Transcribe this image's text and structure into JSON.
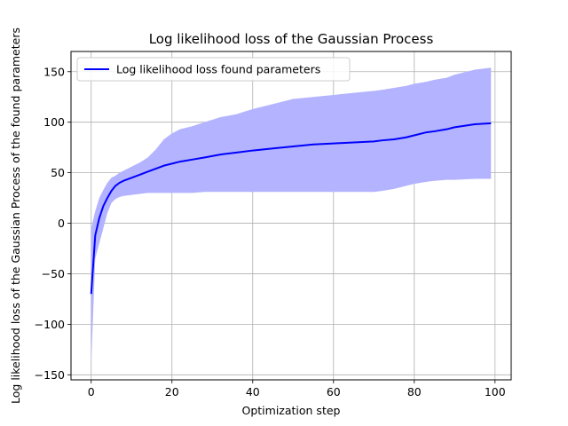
{
  "chart_data": {
    "type": "line",
    "title": "Log likelihood loss of the Gaussian Process",
    "xlabel": "Optimization step",
    "ylabel": "Log likelihood loss of the Gaussian Process of the found parameters",
    "xlim": [
      -5,
      104
    ],
    "ylim": [
      -155,
      170
    ],
    "xticks": [
      0,
      20,
      40,
      60,
      80,
      100
    ],
    "yticks": [
      -150,
      -100,
      -50,
      0,
      50,
      100,
      150
    ],
    "grid": true,
    "legend": {
      "placement": "top-left",
      "entries": [
        "Log likelihood loss found parameters"
      ]
    },
    "colors": {
      "line": "#0000ff",
      "band": "#b3b3ff",
      "grid": "#b0b0b0"
    },
    "series": [
      {
        "name": "Log likelihood loss found parameters",
        "x": [
          0,
          1,
          2,
          3,
          4,
          5,
          6,
          7,
          8,
          10,
          12,
          14,
          16,
          18,
          20,
          22,
          25,
          28,
          32,
          36,
          40,
          45,
          50,
          55,
          60,
          65,
          70,
          72,
          75,
          78,
          80,
          83,
          85,
          88,
          90,
          95,
          99
        ],
        "mean": [
          -70,
          -12,
          5,
          17,
          25,
          32,
          37,
          40,
          42,
          45,
          48,
          51,
          54,
          57,
          59,
          61,
          63,
          65,
          68,
          70,
          72,
          74,
          76,
          78,
          79,
          80,
          81,
          82,
          83,
          85,
          87,
          90,
          91,
          93,
          95,
          98,
          99
        ],
        "upper": [
          -5,
          12,
          25,
          33,
          40,
          45,
          47,
          50,
          52,
          56,
          60,
          65,
          73,
          83,
          89,
          93,
          96,
          100,
          105,
          108,
          113,
          118,
          123,
          125,
          127,
          129,
          131,
          132,
          134,
          136,
          138,
          140,
          142,
          144,
          147,
          152,
          154
        ],
        "lower": [
          -140,
          -35,
          -20,
          -5,
          10,
          20,
          24,
          26,
          27,
          28,
          29,
          30,
          30,
          30,
          30,
          30,
          30,
          31,
          31,
          31,
          31,
          31,
          31,
          31,
          31,
          31,
          31,
          32,
          34,
          37,
          39,
          41,
          42,
          43,
          43,
          44,
          44
        ]
      }
    ]
  }
}
